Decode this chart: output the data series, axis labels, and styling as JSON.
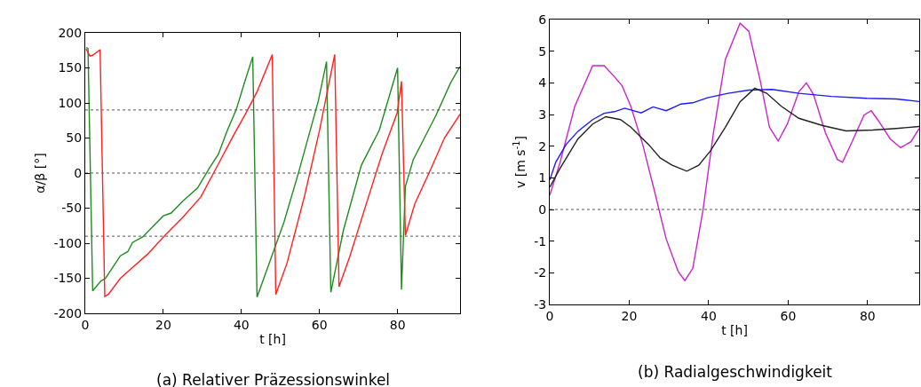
{
  "chart_data": [
    {
      "type": "line",
      "annotations": [
        "(a) Relativer Präzessionswinkel"
      ],
      "xlabel": "t [h]",
      "ylabel": "α/β [°]",
      "xlim": [
        0,
        96
      ],
      "xticks": [
        0,
        20,
        40,
        60,
        80
      ],
      "ylim": [
        -200,
        200
      ],
      "yticks": [
        -200,
        -150,
        -100,
        -50,
        0,
        50,
        100,
        150,
        200
      ],
      "grid": false,
      "marker": "none",
      "line_style": "solid",
      "ref_lines": [
        {
          "axis": "y",
          "value": 90,
          "color": "#555555",
          "line_style": "dotted"
        },
        {
          "axis": "y",
          "value": 0,
          "color": "#555555",
          "line_style": "dotted"
        },
        {
          "axis": "y",
          "value": -90,
          "color": "#555555",
          "line_style": "dotted"
        }
      ],
      "series": [
        {
          "color": "#1e8c1e",
          "x": [
            0.2,
            0.7,
            1.9,
            4.0,
            5.2,
            9.0,
            10.9,
            12.1,
            14.7,
            20.0,
            22.0,
            25.0,
            28.8,
            31.9,
            34.1,
            36.4,
            38.7,
            41.0,
            42.9,
            44.0,
            50.9,
            54.7,
            59.7,
            61.8,
            62.9,
            66.1,
            70.7,
            75.3,
            80.0,
            81.0,
            82.0,
            84.0,
            89.8,
            93.6,
            96
          ],
          "values": [
            179,
            178,
            -168,
            -154,
            -150,
            -118,
            -112,
            -99,
            -91,
            -61,
            -57,
            -40,
            -21,
            8,
            27,
            61,
            91,
            133,
            166,
            -177,
            -70,
            2,
            103,
            159,
            -170,
            -82,
            11,
            61,
            150,
            -166,
            -19,
            19,
            82,
            129,
            152
          ]
        },
        {
          "color": "#ff2020",
          "x": [
            0.2,
            1.2,
            1.9,
            3.8,
            5.0,
            5.9,
            9.0,
            12.0,
            15.9,
            20.4,
            25.0,
            29.6,
            34.1,
            37.9,
            41.0,
            44.0,
            47.9,
            48.8,
            51.7,
            56.2,
            60.0,
            63.9,
            65.0,
            67.7,
            72.2,
            76.0,
            79.9,
            81.0,
            82.0,
            84.4,
            88.2,
            92.0,
            96
          ],
          "values": [
            177,
            167,
            168,
            176,
            -176,
            -173,
            -150,
            -135,
            -116,
            -89,
            -63,
            -34,
            13,
            53,
            84,
            116,
            169,
            -173,
            -128,
            -32,
            61,
            169,
            -162,
            -120,
            -40,
            27,
            86,
            131,
            -89,
            -44,
            2,
            50,
            84
          ]
        }
      ]
    },
    {
      "type": "line",
      "annotations": [
        "(b) Radialgeschwindigkeit"
      ],
      "xlabel": "t [h]",
      "ylabel": "v [m s$^{-1}$]",
      "xlim": [
        0,
        93
      ],
      "xticks": [
        0,
        20,
        40,
        60,
        80
      ],
      "ylim": [
        -3,
        6
      ],
      "yticks": [
        -3,
        -2,
        -1,
        0,
        1,
        2,
        3,
        4,
        5,
        6
      ],
      "grid": false,
      "marker": "none",
      "line_style": "solid",
      "ref_lines": [
        {
          "axis": "y",
          "value": 0,
          "color": "#555555",
          "line_style": "dotted"
        }
      ],
      "series": [
        {
          "color": "#cc22cc",
          "x": [
            0,
            2.6,
            6.3,
            10.8,
            13.7,
            16.0,
            18.2,
            20.4,
            23.4,
            26.4,
            29.3,
            32.3,
            34.0,
            36.0,
            38.6,
            41.2,
            44.2,
            47.9,
            50.1,
            53.1,
            55.3,
            57.5,
            59.8,
            62.7,
            64.6,
            66.4,
            69.4,
            72.4,
            73.7,
            76.1,
            79.1,
            80.9,
            82.8,
            85.7,
            88.3,
            90.9,
            93
          ],
          "values": [
            0.45,
            1.49,
            3.26,
            4.54,
            4.54,
            4.23,
            3.91,
            3.26,
            2.05,
            0.56,
            -0.93,
            -1.95,
            -2.25,
            -1.86,
            0,
            2.42,
            4.74,
            5.88,
            5.63,
            4.0,
            2.6,
            2.16,
            2.7,
            3.72,
            4.0,
            3.63,
            2.42,
            1.58,
            1.49,
            2.14,
            2.98,
            3.12,
            2.79,
            2.23,
            1.95,
            2.14,
            2.56
          ]
        },
        {
          "color": "#1a1aff",
          "x": [
            0,
            1.5,
            4.1,
            7.1,
            10.8,
            13.7,
            16.3,
            18.9,
            20.8,
            23.0,
            26.0,
            29.3,
            33.0,
            36.0,
            39.7,
            44.9,
            50.1,
            56.0,
            62.7,
            70.9,
            79.8,
            87.2,
            93
          ],
          "values": [
            0.93,
            1.49,
            2.05,
            2.47,
            2.84,
            3.04,
            3.09,
            3.2,
            3.13,
            3.05,
            3.24,
            3.12,
            3.33,
            3.37,
            3.53,
            3.67,
            3.77,
            3.79,
            3.67,
            3.57,
            3.51,
            3.49,
            3.41
          ]
        },
        {
          "color": "#222222",
          "x": [
            0,
            2.6,
            7.1,
            10.8,
            14.1,
            17.8,
            20.4,
            23.4,
            24.9,
            27.8,
            30.8,
            34.5,
            37.5,
            40.5,
            44.2,
            47.9,
            51.6,
            54.6,
            58.3,
            62.7,
            68.7,
            74.6,
            81.3,
            87.2,
            93
          ],
          "values": [
            0.7,
            1.3,
            2.23,
            2.7,
            2.93,
            2.84,
            2.6,
            2.23,
            2.05,
            1.63,
            1.4,
            1.21,
            1.4,
            1.86,
            2.6,
            3.4,
            3.83,
            3.67,
            3.26,
            2.88,
            2.65,
            2.48,
            2.51,
            2.56,
            2.62
          ]
        }
      ]
    }
  ]
}
